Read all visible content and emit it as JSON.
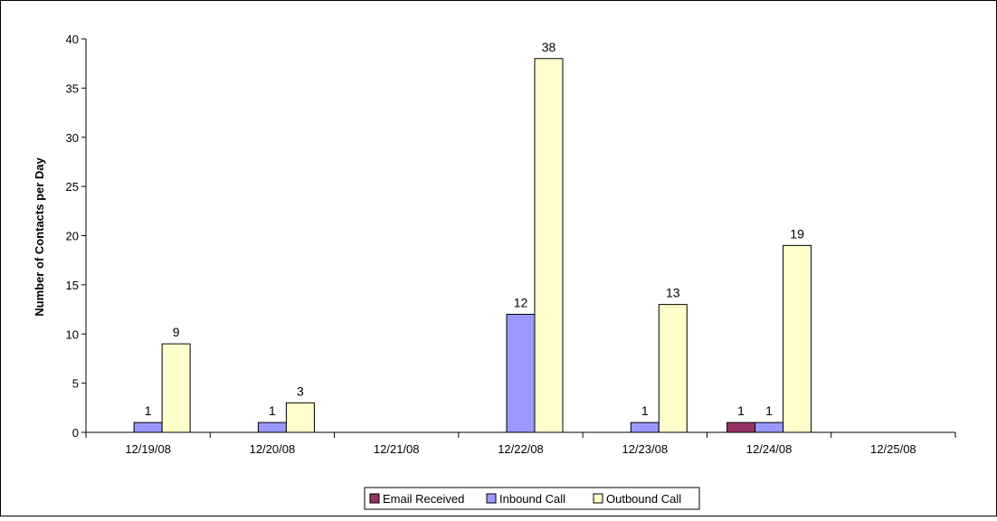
{
  "chart_data": {
    "type": "bar",
    "title": "",
    "xlabel": "",
    "ylabel": "Number of Contacts per Day",
    "ylim": [
      0,
      40
    ],
    "yticks": [
      0,
      5,
      10,
      15,
      20,
      25,
      30,
      35,
      40
    ],
    "ytick_labels": [
      "0",
      "5",
      "10",
      "15",
      "20",
      "25",
      "30",
      "35",
      "40"
    ],
    "categories": [
      "12/19/08",
      "12/20/08",
      "12/21/08",
      "12/22/08",
      "12/23/08",
      "12/24/08",
      "12/25/08"
    ],
    "series": [
      {
        "name": "Email Received",
        "color": "#993366",
        "values": [
          0,
          0,
          0,
          0,
          0,
          1,
          0
        ],
        "labels": [
          "",
          "",
          "",
          "",
          "",
          "1",
          ""
        ]
      },
      {
        "name": "Inbound Call",
        "color": "#9999ff",
        "values": [
          1,
          1,
          0,
          12,
          1,
          1,
          0
        ],
        "labels": [
          "1",
          "1",
          "",
          "12",
          "1",
          "1",
          ""
        ]
      },
      {
        "name": "Outbound Call",
        "color": "#ffffcc",
        "values": [
          9,
          3,
          0,
          38,
          13,
          19,
          0
        ],
        "labels": [
          "9",
          "3",
          "",
          "38",
          "13",
          "19",
          ""
        ]
      }
    ],
    "grid": false,
    "legend_position": "bottom-center"
  }
}
